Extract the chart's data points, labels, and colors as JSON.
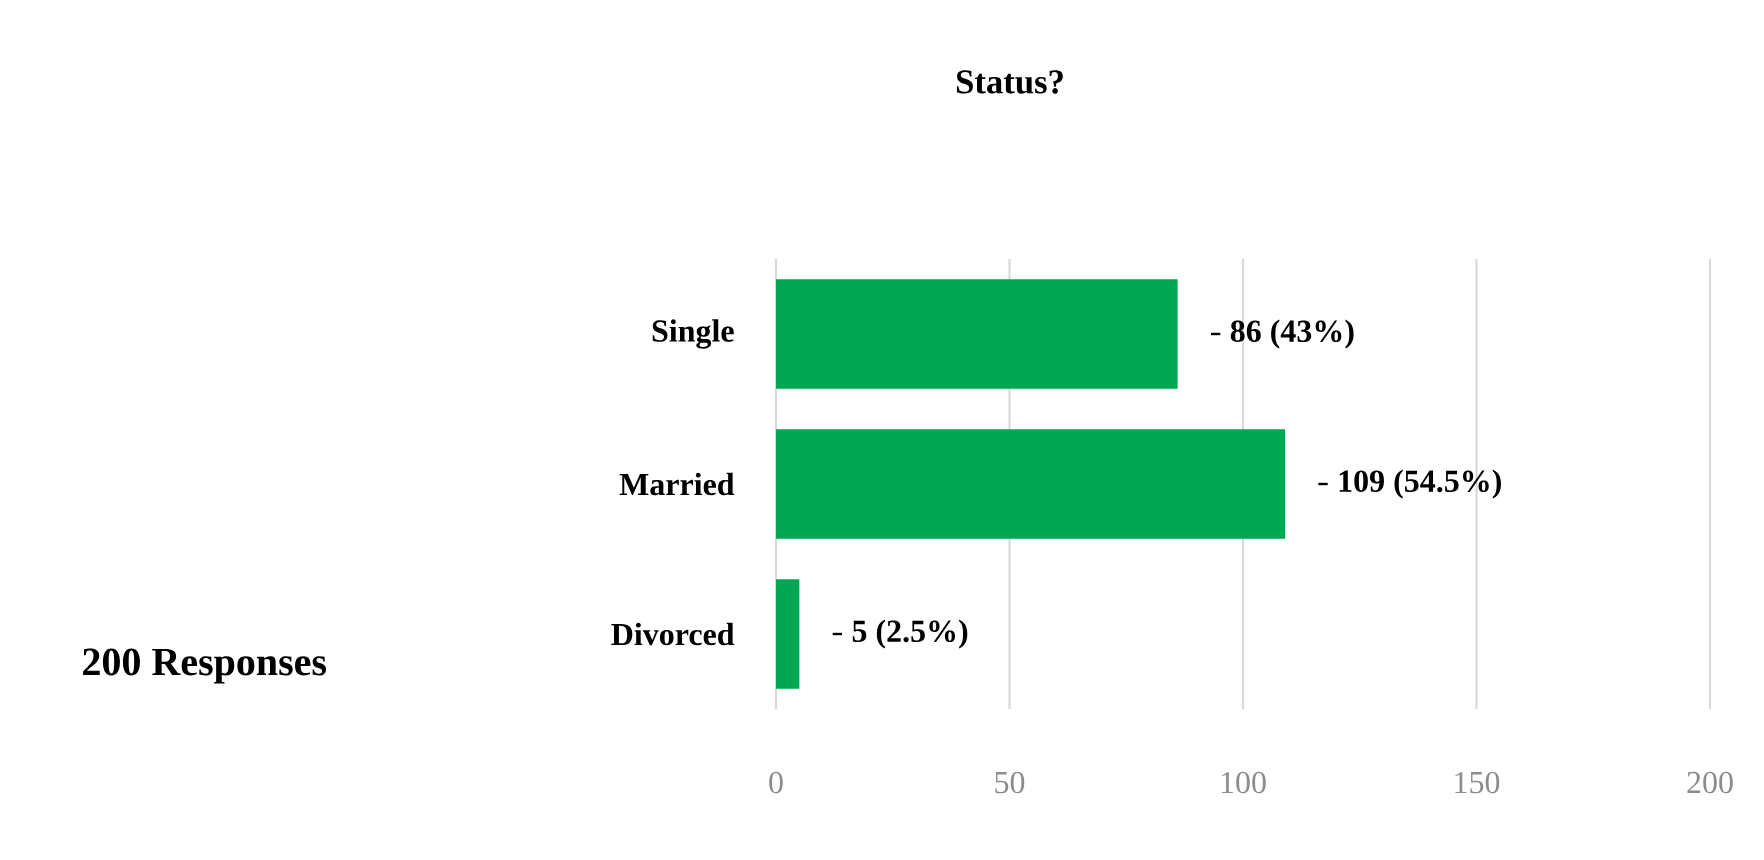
{
  "chart_data": {
    "type": "bar",
    "orientation": "horizontal",
    "title": "Status?",
    "categories": [
      "Single",
      "Married",
      "Divorced"
    ],
    "values": [
      86,
      109,
      5
    ],
    "value_labels": [
      "86 (43%)",
      "109 (54.5%)",
      "5 (2.5%)"
    ],
    "color": "#00a651",
    "xlim": [
      0,
      200
    ],
    "xticks": [
      0,
      50,
      100,
      150,
      200
    ],
    "grid": "x",
    "annotations": [
      "200 Responses"
    ]
  }
}
